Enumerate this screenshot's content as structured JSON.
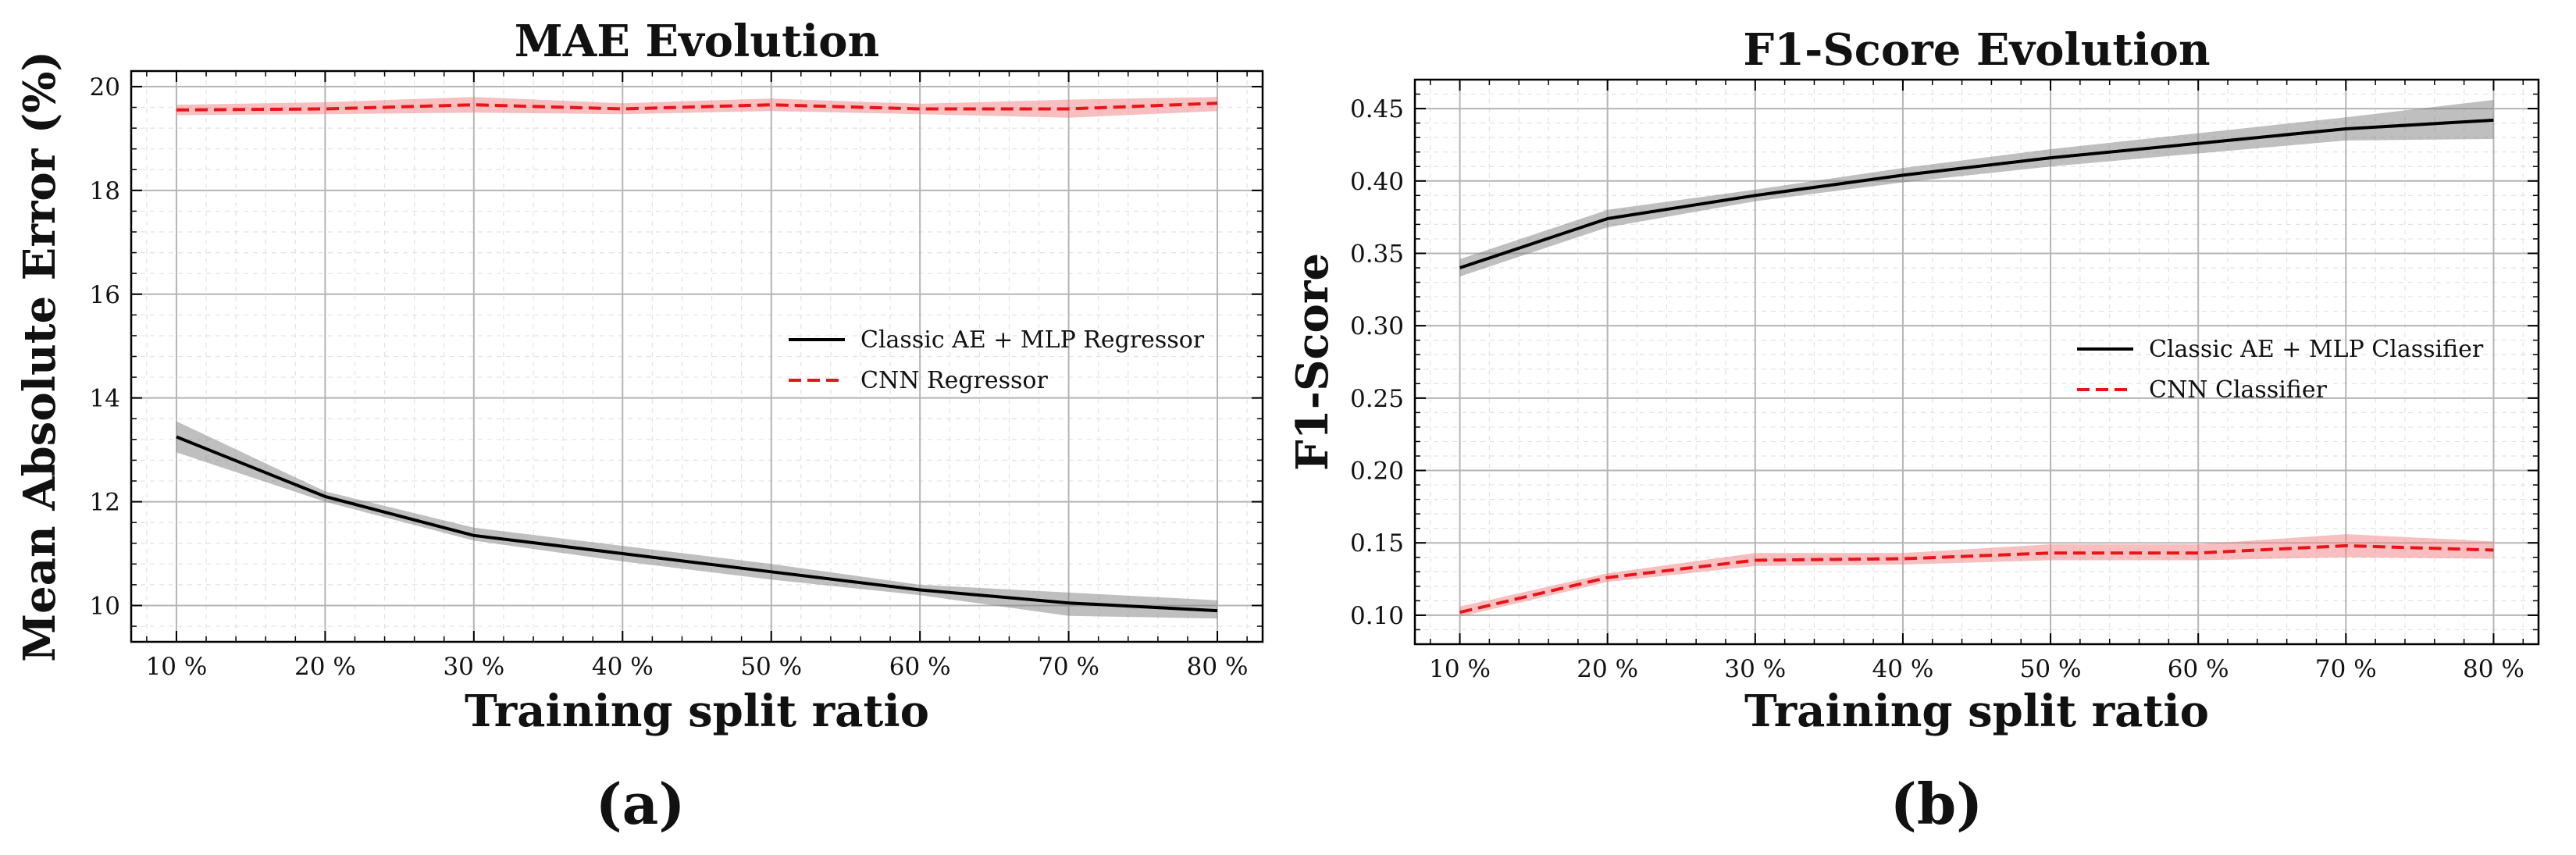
{
  "chart_data": [
    {
      "type": "line",
      "title": "MAE Evolution",
      "xlabel": "Training split ratio",
      "ylabel": "Mean Absolute Error (%)",
      "panel_label": "(a)",
      "categories": [
        "10 %",
        "20 %",
        "30 %",
        "40 %",
        "50 %",
        "60 %",
        "70 %",
        "80 %"
      ],
      "ylim": [
        9.3,
        20.3
      ],
      "yticks": [
        10,
        12,
        14,
        16,
        18,
        20
      ],
      "ytick_labels": [
        "10",
        "12",
        "14",
        "16",
        "18",
        "20"
      ],
      "grid": true,
      "legend_position": "center-right",
      "series": [
        {
          "name": "Classic AE + MLP Regressor",
          "style": "solid",
          "color": "#000000",
          "band_color": "#808080",
          "values": [
            13.25,
            12.1,
            11.35,
            11.0,
            10.65,
            10.3,
            10.05,
            9.9
          ],
          "lower": [
            12.95,
            12.0,
            11.25,
            10.85,
            10.5,
            10.2,
            9.8,
            9.75
          ],
          "upper": [
            13.55,
            12.2,
            11.5,
            11.15,
            10.8,
            10.4,
            10.25,
            10.1
          ]
        },
        {
          "name": "CNN Regressor",
          "style": "dashed",
          "color": "#e8141a",
          "band_color": "#f08080",
          "values": [
            19.55,
            19.57,
            19.65,
            19.57,
            19.65,
            19.57,
            19.57,
            19.68
          ],
          "lower": [
            19.45,
            19.47,
            19.5,
            19.47,
            19.53,
            19.47,
            19.4,
            19.53
          ],
          "upper": [
            19.65,
            19.7,
            19.8,
            19.68,
            19.77,
            19.67,
            19.75,
            19.8
          ]
        }
      ]
    },
    {
      "type": "line",
      "title": "F1-Score Evolution",
      "xlabel": "Training split ratio",
      "ylabel": "F1-Score",
      "panel_label": "(b)",
      "categories": [
        "10 %",
        "20 %",
        "30 %",
        "40 %",
        "50 %",
        "60 %",
        "70 %",
        "80 %"
      ],
      "ylim": [
        0.08,
        0.47
      ],
      "yticks": [
        0.1,
        0.15,
        0.2,
        0.25,
        0.3,
        0.35,
        0.4,
        0.45
      ],
      "ytick_labels": [
        "0.10",
        "0.15",
        "0.20",
        "0.25",
        "0.30",
        "0.35",
        "0.40",
        "0.45"
      ],
      "grid": true,
      "legend_position": "center-right",
      "series": [
        {
          "name": "Classic AE + MLP Classifier",
          "style": "solid",
          "color": "#000000",
          "band_color": "#808080",
          "values": [
            0.34,
            0.374,
            0.39,
            0.404,
            0.416,
            0.426,
            0.436,
            0.442
          ],
          "lower": [
            0.334,
            0.368,
            0.386,
            0.399,
            0.41,
            0.419,
            0.428,
            0.429
          ],
          "upper": [
            0.346,
            0.38,
            0.394,
            0.409,
            0.422,
            0.433,
            0.444,
            0.456
          ]
        },
        {
          "name": "CNN Classifier",
          "style": "dashed",
          "color": "#e8141a",
          "band_color": "#f08080",
          "values": [
            0.102,
            0.126,
            0.138,
            0.139,
            0.143,
            0.143,
            0.148,
            0.145
          ],
          "lower": [
            0.099,
            0.123,
            0.134,
            0.135,
            0.138,
            0.138,
            0.14,
            0.139
          ],
          "upper": [
            0.106,
            0.129,
            0.143,
            0.143,
            0.149,
            0.149,
            0.156,
            0.151
          ]
        }
      ]
    }
  ]
}
